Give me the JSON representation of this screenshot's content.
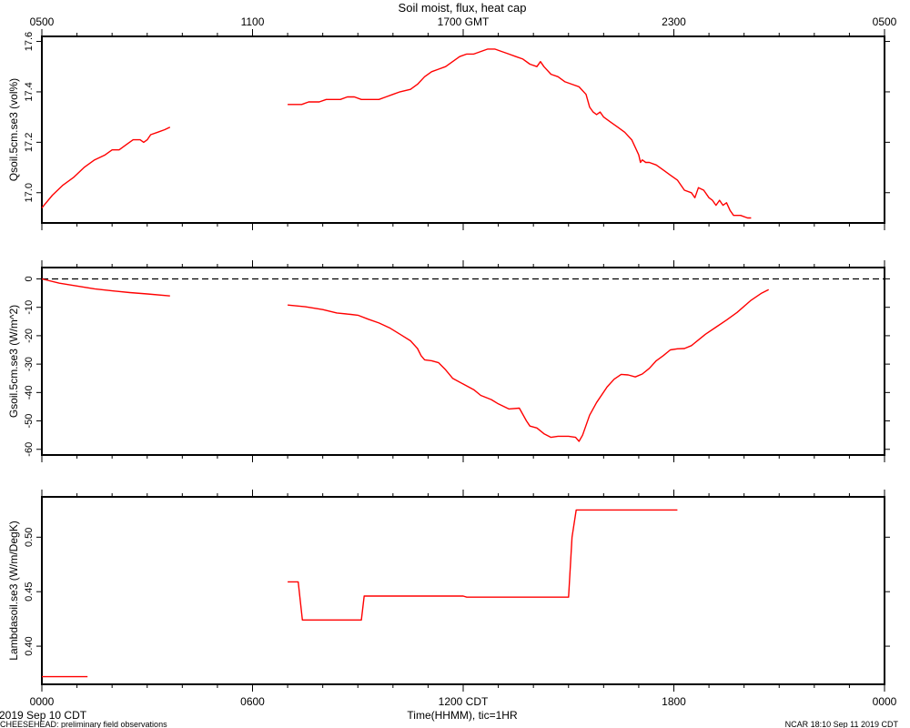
{
  "figure": {
    "title": "Soil moist, flux, heat cap",
    "footer_left": "CHEESEHEAD: preliminary field observations",
    "footer_right": "NCAR 18:10 Sep 11 2019 CDT"
  },
  "x_axis": {
    "range_hours": [
      0,
      24
    ],
    "bottom_ticks": [
      {
        "hour": 0,
        "label": "0000"
      },
      {
        "hour": 6,
        "label": "0600"
      },
      {
        "hour": 12,
        "label": "1200 CDT"
      },
      {
        "hour": 18,
        "label": "1800"
      },
      {
        "hour": 24,
        "label": "0000"
      }
    ],
    "top_ticks": [
      {
        "hour": 0,
        "label": "0500"
      },
      {
        "hour": 6,
        "label": "1100"
      },
      {
        "hour": 12,
        "label": "1700 GMT"
      },
      {
        "hour": 18,
        "label": "2300"
      },
      {
        "hour": 24,
        "label": "0500"
      }
    ],
    "xlabel": "Time(HHMM), tic=1HR",
    "date_label": "2019 Sep 10 CDT",
    "minor_tick_step_hours": 1
  },
  "colors": {
    "series": "#ff0000",
    "axes": "#000000",
    "zero_line": "#000000"
  },
  "chart_data": [
    {
      "type": "line",
      "ylabel": "Qsoil.5cm.se3 (vol%)",
      "ylim": [
        16.88,
        17.62
      ],
      "yticks": [
        17.0,
        17.2,
        17.4,
        17.6
      ],
      "ytick_labels": [
        "17.0",
        "17.2",
        "17.4",
        "17.6"
      ],
      "grid": false,
      "series": [
        {
          "segments": [
            [
              [
                0.0,
                16.94
              ],
              [
                0.3,
                16.99
              ],
              [
                0.6,
                17.03
              ],
              [
                0.9,
                17.06
              ],
              [
                1.2,
                17.1
              ],
              [
                1.5,
                17.13
              ],
              [
                1.8,
                17.15
              ],
              [
                2.0,
                17.17
              ],
              [
                2.2,
                17.17
              ],
              [
                2.4,
                17.19
              ],
              [
                2.6,
                17.21
              ],
              [
                2.8,
                17.21
              ],
              [
                2.9,
                17.2
              ],
              [
                3.0,
                17.21
              ],
              [
                3.1,
                17.23
              ],
              [
                3.3,
                17.24
              ],
              [
                3.5,
                17.25
              ],
              [
                3.65,
                17.26
              ]
            ],
            [
              [
                7.0,
                17.35
              ],
              [
                7.4,
                17.35
              ],
              [
                7.6,
                17.36
              ],
              [
                7.9,
                17.36
              ],
              [
                8.1,
                17.37
              ],
              [
                8.5,
                17.37
              ],
              [
                8.7,
                17.38
              ],
              [
                8.9,
                17.38
              ],
              [
                9.1,
                17.37
              ],
              [
                9.6,
                17.37
              ],
              [
                9.8,
                17.38
              ],
              [
                10.0,
                17.39
              ],
              [
                10.2,
                17.4
              ],
              [
                10.5,
                17.41
              ],
              [
                10.7,
                17.43
              ],
              [
                10.9,
                17.46
              ],
              [
                11.1,
                17.48
              ],
              [
                11.3,
                17.49
              ],
              [
                11.5,
                17.5
              ],
              [
                11.7,
                17.52
              ],
              [
                11.9,
                17.54
              ],
              [
                12.1,
                17.55
              ],
              [
                12.3,
                17.55
              ],
              [
                12.5,
                17.56
              ],
              [
                12.7,
                17.57
              ],
              [
                12.9,
                17.57
              ],
              [
                13.1,
                17.56
              ],
              [
                13.3,
                17.55
              ],
              [
                13.5,
                17.54
              ],
              [
                13.7,
                17.53
              ],
              [
                13.9,
                17.51
              ],
              [
                14.1,
                17.5
              ],
              [
                14.2,
                17.52
              ],
              [
                14.3,
                17.5
              ],
              [
                14.5,
                17.47
              ],
              [
                14.7,
                17.46
              ],
              [
                14.9,
                17.44
              ],
              [
                15.1,
                17.43
              ],
              [
                15.3,
                17.42
              ],
              [
                15.5,
                17.39
              ],
              [
                15.6,
                17.34
              ],
              [
                15.7,
                17.32
              ],
              [
                15.8,
                17.31
              ],
              [
                15.9,
                17.32
              ],
              [
                16.0,
                17.3
              ],
              [
                16.2,
                17.28
              ],
              [
                16.4,
                17.26
              ],
              [
                16.6,
                17.24
              ],
              [
                16.8,
                17.21
              ],
              [
                16.9,
                17.18
              ],
              [
                17.0,
                17.15
              ],
              [
                17.05,
                17.12
              ],
              [
                17.1,
                17.13
              ],
              [
                17.2,
                17.12
              ],
              [
                17.3,
                17.12
              ],
              [
                17.5,
                17.11
              ],
              [
                17.7,
                17.09
              ],
              [
                17.9,
                17.07
              ],
              [
                18.1,
                17.05
              ],
              [
                18.2,
                17.03
              ],
              [
                18.3,
                17.01
              ],
              [
                18.5,
                17.0
              ],
              [
                18.6,
                16.98
              ],
              [
                18.7,
                17.02
              ],
              [
                18.85,
                17.01
              ],
              [
                19.0,
                16.98
              ],
              [
                19.1,
                16.97
              ],
              [
                19.2,
                16.95
              ],
              [
                19.3,
                16.97
              ],
              [
                19.4,
                16.95
              ],
              [
                19.5,
                16.96
              ],
              [
                19.6,
                16.93
              ],
              [
                19.7,
                16.91
              ],
              [
                19.9,
                16.91
              ],
              [
                20.1,
                16.9
              ],
              [
                20.2,
                16.9
              ]
            ]
          ]
        }
      ]
    },
    {
      "type": "line",
      "ylabel": "Gsoil.5cm.se3 (W/m^2)",
      "ylim": [
        -62,
        4
      ],
      "yticks": [
        0,
        -10,
        -20,
        -30,
        -40,
        -50,
        -60
      ],
      "ytick_labels": [
        "0",
        "-10",
        "-20",
        "-30",
        "-40",
        "-50",
        "-60"
      ],
      "zero_line": 0,
      "grid": false,
      "series": [
        {
          "segments": [
            [
              [
                0.0,
                0.0
              ],
              [
                0.5,
                -1.5
              ],
              [
                1.0,
                -2.5
              ],
              [
                1.5,
                -3.5
              ],
              [
                2.0,
                -4.2
              ],
              [
                2.5,
                -4.8
              ],
              [
                3.0,
                -5.3
              ],
              [
                3.65,
                -6.0
              ]
            ],
            [
              [
                7.0,
                -9.2
              ],
              [
                7.5,
                -9.8
              ],
              [
                8.0,
                -10.8
              ],
              [
                8.4,
                -12.0
              ],
              [
                8.8,
                -12.5
              ],
              [
                9.0,
                -12.8
              ],
              [
                9.3,
                -14.2
              ],
              [
                9.6,
                -15.5
              ],
              [
                9.9,
                -17.2
              ],
              [
                10.2,
                -19.5
              ],
              [
                10.5,
                -21.8
              ],
              [
                10.7,
                -24.5
              ],
              [
                10.8,
                -27.0
              ],
              [
                10.9,
                -28.5
              ],
              [
                11.1,
                -28.8
              ],
              [
                11.3,
                -29.5
              ],
              [
                11.5,
                -32.0
              ],
              [
                11.7,
                -35.0
              ],
              [
                12.0,
                -37.0
              ],
              [
                12.3,
                -39.0
              ],
              [
                12.5,
                -41.0
              ],
              [
                12.8,
                -42.5
              ],
              [
                13.0,
                -44.0
              ],
              [
                13.3,
                -45.8
              ],
              [
                13.6,
                -45.5
              ],
              [
                13.8,
                -50.0
              ],
              [
                13.9,
                -51.8
              ],
              [
                14.1,
                -52.5
              ],
              [
                14.3,
                -54.5
              ],
              [
                14.5,
                -55.8
              ],
              [
                14.7,
                -55.4
              ],
              [
                15.0,
                -55.4
              ],
              [
                15.2,
                -55.8
              ],
              [
                15.3,
                -57.2
              ],
              [
                15.4,
                -55.0
              ],
              [
                15.6,
                -48.0
              ],
              [
                15.8,
                -43.5
              ],
              [
                16.1,
                -38.0
              ],
              [
                16.3,
                -35.3
              ],
              [
                16.5,
                -33.6
              ],
              [
                16.7,
                -33.8
              ],
              [
                16.9,
                -34.5
              ],
              [
                17.1,
                -33.5
              ],
              [
                17.3,
                -31.5
              ],
              [
                17.5,
                -28.8
              ],
              [
                17.7,
                -27.0
              ],
              [
                17.9,
                -25.0
              ],
              [
                18.1,
                -24.6
              ],
              [
                18.3,
                -24.5
              ],
              [
                18.5,
                -23.5
              ],
              [
                18.7,
                -21.5
              ],
              [
                18.9,
                -19.5
              ],
              [
                19.2,
                -17.0
              ],
              [
                19.5,
                -14.5
              ],
              [
                19.8,
                -11.8
              ],
              [
                20.2,
                -7.5
              ],
              [
                20.5,
                -5.0
              ],
              [
                20.7,
                -3.8
              ]
            ]
          ]
        }
      ]
    },
    {
      "type": "line",
      "ylabel": "Lambdasoil.se3 (W/m/DegK)",
      "ylim": [
        0.365,
        0.537
      ],
      "yticks": [
        0.4,
        0.45,
        0.5
      ],
      "ytick_labels": [
        "0.40",
        "0.45",
        "0.50"
      ],
      "grid": false,
      "series": [
        {
          "segments": [
            [
              [
                0.0,
                0.372
              ],
              [
                1.3,
                0.372
              ]
            ],
            [
              [
                7.0,
                0.459
              ],
              [
                7.3,
                0.459
              ],
              [
                7.42,
                0.424
              ],
              [
                9.1,
                0.424
              ],
              [
                9.18,
                0.446
              ],
              [
                12.0,
                0.446
              ],
              [
                12.1,
                0.445
              ],
              [
                15.0,
                0.445
              ],
              [
                15.1,
                0.5
              ],
              [
                15.22,
                0.525
              ],
              [
                18.1,
                0.525
              ]
            ]
          ]
        }
      ]
    }
  ]
}
